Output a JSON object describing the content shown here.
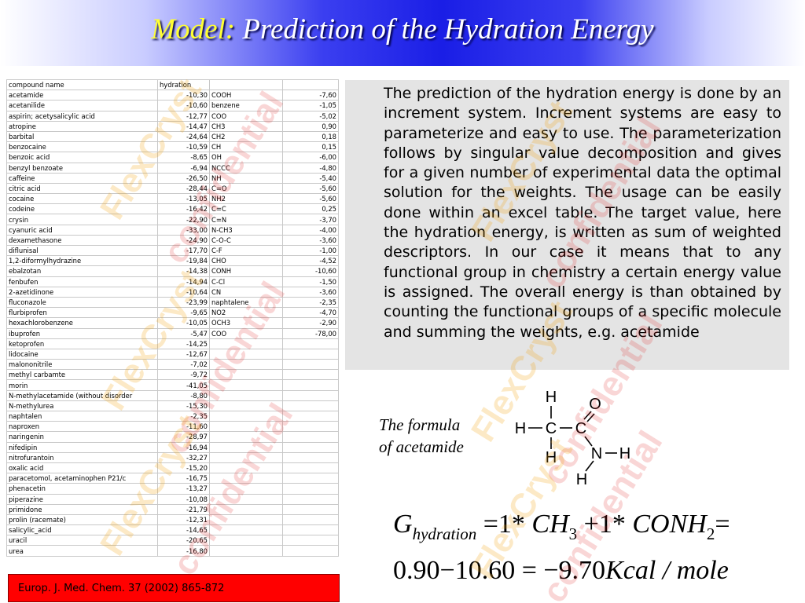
{
  "title": {
    "accent": "Model:",
    "main": "Prediction of the Hydration Energy"
  },
  "watermarks": [
    "FlexCryst",
    "confidential"
  ],
  "table": {
    "headers": [
      "compound name",
      "hydration",
      "",
      ""
    ],
    "rows": [
      [
        "acetamide",
        "-10,30",
        "COOH",
        "-7,60"
      ],
      [
        "acetanilide",
        "-10,60",
        "benzene",
        "-1,05"
      ],
      [
        "aspirin; acetysalicylic acid",
        "-12,77",
        "COO",
        "-5,02"
      ],
      [
        "atropine",
        "-14,47",
        "CH3",
        "0,90"
      ],
      [
        "barbital",
        "-24,64",
        "CH2",
        "0,18"
      ],
      [
        "benzocaine",
        "-10,59",
        "CH",
        "0,15"
      ],
      [
        "benzoic acid",
        "-8,65",
        "OH",
        "-6,00"
      ],
      [
        "benzyl benzoate",
        "-6,94",
        "NCCC",
        "-4,80"
      ],
      [
        "caffeine",
        "-26,50",
        "NH",
        "-5,40"
      ],
      [
        "citric acid",
        "-28,44",
        "C=O",
        "-5,60"
      ],
      [
        "cocaine",
        "-13,05",
        "NH2",
        "-5,60"
      ],
      [
        "codeine",
        "-16,42",
        "C=C",
        "0,25"
      ],
      [
        "crysin",
        "-22,90",
        "C=N",
        "-3,70"
      ],
      [
        "cyanuric acid",
        "-33,00",
        "N-CH3",
        "-4,00"
      ],
      [
        "dexamethasone",
        "-24,90",
        "C-O-C",
        "-3,60"
      ],
      [
        "diflunisal",
        "-17,70",
        "C-F",
        "-1,00"
      ],
      [
        "1,2-diformylhydrazine",
        "-19,84",
        "CHO",
        "-4,52"
      ],
      [
        "ebalzotan",
        "-14,38",
        "CONH",
        "-10,60"
      ],
      [
        "fenbufen",
        "-14,94",
        "C-Cl",
        "-1,50"
      ],
      [
        "2-azetidinone",
        "-10,64",
        "CN",
        "-3,60"
      ],
      [
        "fluconazole",
        "-23,99",
        "naphtalene",
        "-2,35"
      ],
      [
        "flurbiprofen",
        "-9,65",
        "NO2",
        "-4,70"
      ],
      [
        "hexachlorobenzene",
        "-10,05",
        "OCH3",
        "-2,90"
      ],
      [
        "ibuprofen",
        "-5,47",
        "COO",
        "-78,00"
      ],
      [
        "ketoprofen",
        "-14,25",
        "",
        ""
      ],
      [
        "lidocaine",
        "-12,67",
        "",
        ""
      ],
      [
        "malononitrile",
        "-7,02",
        "",
        ""
      ],
      [
        "methyl carbamte",
        "-9,72",
        "",
        ""
      ],
      [
        "morin",
        "-41,05",
        "",
        ""
      ],
      [
        "N-methylacetamide (without disorder",
        "-8,80",
        "",
        ""
      ],
      [
        "N-methylurea",
        "-15,30",
        "",
        ""
      ],
      [
        "naphtalen",
        "-2,35",
        "",
        ""
      ],
      [
        "naproxen",
        "-11,60",
        "",
        ""
      ],
      [
        "naringenin",
        "-28,97",
        "",
        ""
      ],
      [
        "nifedipin",
        "-16,94",
        "",
        ""
      ],
      [
        "nitrofurantoin",
        "-32,27",
        "",
        ""
      ],
      [
        "oxalic acid",
        "-15,20",
        "",
        ""
      ],
      [
        "paracetomol, acetaminophen P21/c",
        "-16,75",
        "",
        ""
      ],
      [
        "phenacetin",
        "-13,27",
        "",
        ""
      ],
      [
        "piperazine",
        "-10,08",
        "",
        ""
      ],
      [
        "primidone",
        "-21,79",
        "",
        ""
      ],
      [
        "prolin (racemate)",
        "-12,31",
        "",
        ""
      ],
      [
        "salicylic_acid",
        "-14,65",
        "",
        ""
      ],
      [
        "uracil",
        "-20,65",
        "",
        ""
      ],
      [
        "urea",
        "-16,80",
        "",
        ""
      ]
    ]
  },
  "description": "The prediction of the hydration energy is done by an increment system. Increment systems are easy to parameterize and easy to use. The parameterization follows by singular value decomposition and gives for a given number of experimental data the optimal solution for the weights. The usage can be easily done within an excel table. The target value, here the hydration energy, is written as sum of weighted descriptors. In our case it means that to any functional group in chemistry a certain energy value is assigned. The overall energy is than obtained by counting the functional groups of a specific molecule and summing the weights, e.g. acetamide",
  "formula_caption": {
    "line1": "The formula",
    "line2": "of acetamide"
  },
  "molecule": {
    "atoms": [
      "H",
      "H",
      "H",
      "C",
      "C",
      "O",
      "N",
      "H",
      "H"
    ],
    "bonds": [
      "—",
      "—",
      "—",
      "—"
    ]
  },
  "equation": {
    "lhs": "G",
    "lhs_sub": "hydration",
    "eq": "=",
    "coef1": "1*",
    "term1": "CH",
    "term1_sub": "3",
    "plus": "+",
    "coef2": "1*",
    "term2": "CONH",
    "term2_sub": "2",
    "eq_end": "=",
    "line2_a": "0.90",
    "minus": "−",
    "line2_b": "10.60",
    "eq2": "=",
    "line2_c": "−9.70",
    "unit": "Kcal / mole"
  },
  "reference": "Europ. J. Med. Chem. 37 (2002) 865-872",
  "colors": {
    "title_accent": "#ffff33",
    "title_text": "#ffffff",
    "title_bar": "#1a1ee6",
    "text_box_bg": "#e4e4e4",
    "reference_bg": "#ff0000",
    "watermark_orange": "#f2a000",
    "watermark_red": "#e02020"
  }
}
